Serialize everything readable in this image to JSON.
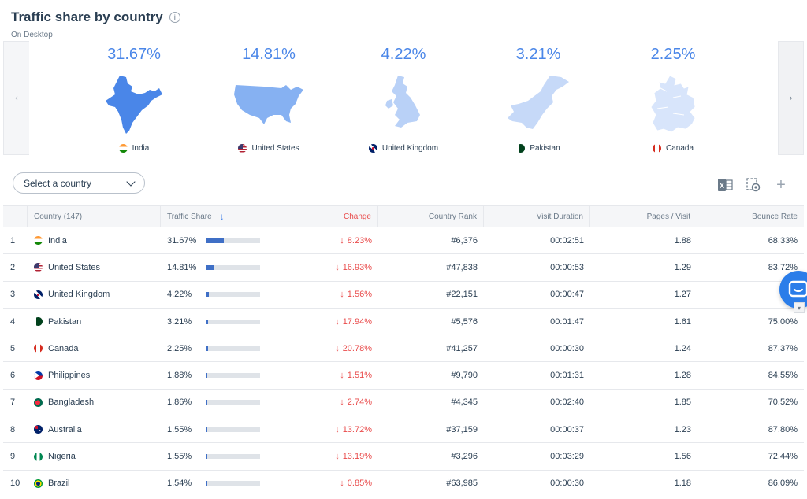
{
  "header": {
    "title": "Traffic share by country",
    "subtitle": "On Desktop"
  },
  "carousel": {
    "prev_icon": "chevron-left-icon",
    "next_icon": "chevron-right-icon",
    "cards": [
      {
        "share": "31.67%",
        "country": "India",
        "flag": "in"
      },
      {
        "share": "14.81%",
        "country": "United States",
        "flag": "us"
      },
      {
        "share": "4.22%",
        "country": "United Kingdom",
        "flag": "gb"
      },
      {
        "share": "3.21%",
        "country": "Pakistan",
        "flag": "pk"
      },
      {
        "share": "2.25%",
        "country": "Canada",
        "flag": "ca"
      }
    ],
    "map_colors": [
      "#4a86e8",
      "#86b1f2",
      "#b9d1f7",
      "#c6d9f8",
      "#d8e5fb"
    ]
  },
  "controls": {
    "select_placeholder": "Select a country"
  },
  "table": {
    "headers": {
      "country": "Country (147)",
      "share": "Traffic Share",
      "change": "Change",
      "rank": "Country Rank",
      "duration": "Visit Duration",
      "pages": "Pages / Visit",
      "bounce": "Bounce Rate"
    },
    "rows": [
      {
        "idx": "1",
        "flag": "in",
        "country": "India",
        "share": "31.67%",
        "share_value": 31.67,
        "change": "8.23%",
        "rank": "#6,376",
        "duration": "00:02:51",
        "pages": "1.88",
        "bounce": "68.33%"
      },
      {
        "idx": "2",
        "flag": "us",
        "country": "United States",
        "share": "14.81%",
        "share_value": 14.81,
        "change": "16.93%",
        "rank": "#47,838",
        "duration": "00:00:53",
        "pages": "1.29",
        "bounce": "83.72%"
      },
      {
        "idx": "3",
        "flag": "gb",
        "country": "United Kingdom",
        "share": "4.22%",
        "share_value": 4.22,
        "change": "1.56%",
        "rank": "#22,151",
        "duration": "00:00:47",
        "pages": "1.27",
        "bounce": "84.5"
      },
      {
        "idx": "4",
        "flag": "pk",
        "country": "Pakistan",
        "share": "3.21%",
        "share_value": 3.21,
        "change": "17.94%",
        "rank": "#5,576",
        "duration": "00:01:47",
        "pages": "1.61",
        "bounce": "75.00%"
      },
      {
        "idx": "5",
        "flag": "ca",
        "country": "Canada",
        "share": "2.25%",
        "share_value": 2.25,
        "change": "20.78%",
        "rank": "#41,257",
        "duration": "00:00:30",
        "pages": "1.24",
        "bounce": "87.37%"
      },
      {
        "idx": "6",
        "flag": "ph",
        "country": "Philippines",
        "share": "1.88%",
        "share_value": 1.88,
        "change": "1.51%",
        "rank": "#9,790",
        "duration": "00:01:31",
        "pages": "1.28",
        "bounce": "84.55%"
      },
      {
        "idx": "7",
        "flag": "bd",
        "country": "Bangladesh",
        "share": "1.86%",
        "share_value": 1.86,
        "change": "2.74%",
        "rank": "#4,345",
        "duration": "00:02:40",
        "pages": "1.85",
        "bounce": "70.52%"
      },
      {
        "idx": "8",
        "flag": "au",
        "country": "Australia",
        "share": "1.55%",
        "share_value": 1.55,
        "change": "13.72%",
        "rank": "#37,159",
        "duration": "00:00:37",
        "pages": "1.23",
        "bounce": "87.80%"
      },
      {
        "idx": "9",
        "flag": "ng",
        "country": "Nigeria",
        "share": "1.55%",
        "share_value": 1.55,
        "change": "13.19%",
        "rank": "#3,296",
        "duration": "00:03:29",
        "pages": "1.56",
        "bounce": "72.44%"
      },
      {
        "idx": "10",
        "flag": "br",
        "country": "Brazil",
        "share": "1.54%",
        "share_value": 1.54,
        "change": "0.85%",
        "rank": "#63,985",
        "duration": "00:00:30",
        "pages": "1.18",
        "bounce": "86.09%"
      }
    ],
    "change_direction": "down",
    "negative_color": "#e94b4b",
    "bar_color": "#3f6fc6"
  }
}
